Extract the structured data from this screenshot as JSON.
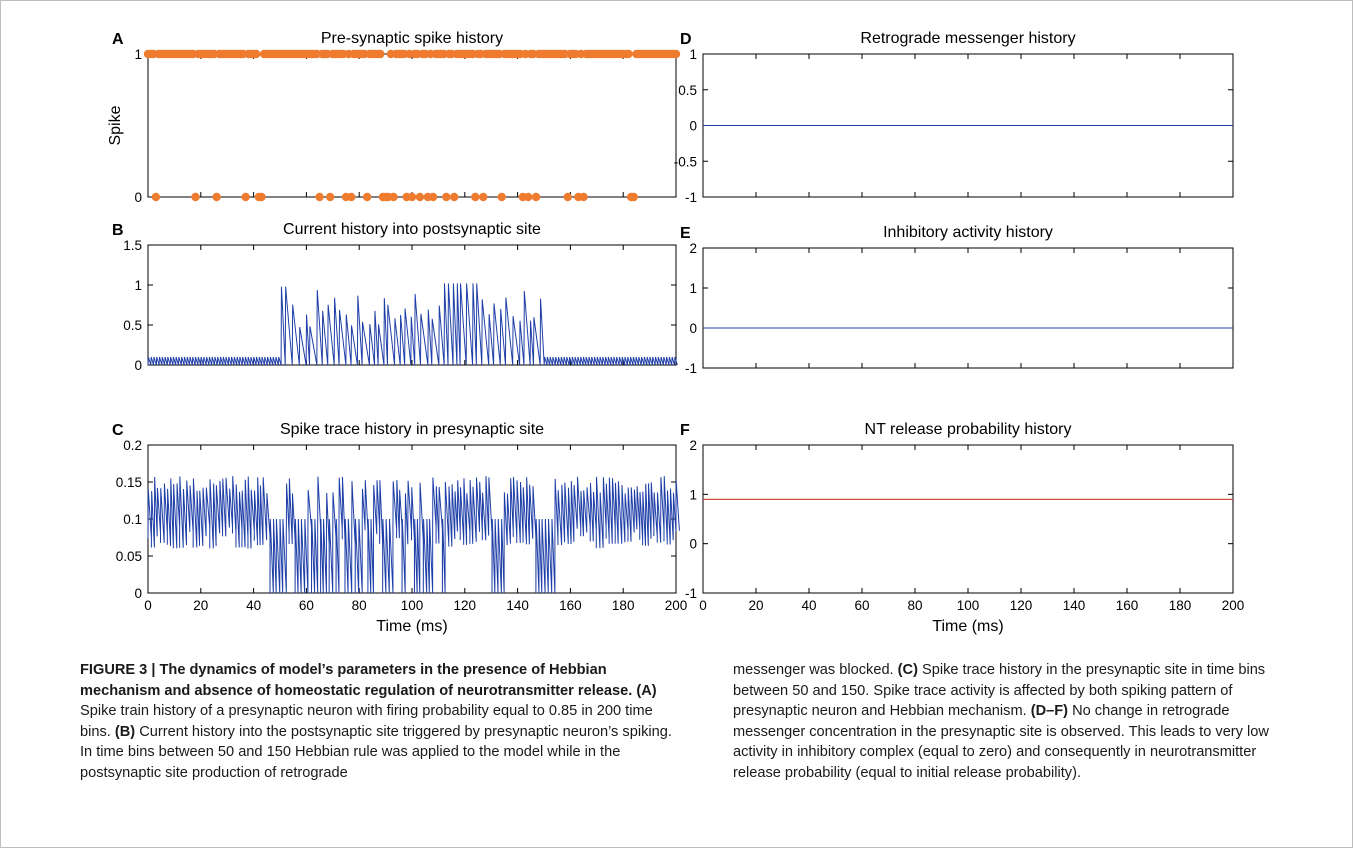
{
  "colors": {
    "spike": "#ef7b2e",
    "trace_blue": "#1f3fa8",
    "nt_red": "#c83a2a",
    "axis": "#000000"
  },
  "chart_data": [
    {
      "id": "A",
      "panel_label": "A",
      "type": "scatter",
      "title": "Pre-synaptic spike history",
      "xlabel": "",
      "ylabel": "Spike",
      "xlim": [
        0,
        200
      ],
      "ylim": [
        0,
        1
      ],
      "yticks": [
        0,
        1
      ],
      "xtick_labels_shown": false,
      "color": "#ef7b2e",
      "zero_spike_times": [
        3,
        18,
        26,
        37,
        42,
        43,
        65,
        69,
        75,
        77,
        83,
        89,
        90,
        91,
        93,
        98,
        100,
        103,
        106,
        108,
        113,
        116,
        124,
        127,
        134,
        142,
        144,
        147,
        159,
        163,
        165,
        183,
        184
      ],
      "spike_value_at_other_bins": 1
    },
    {
      "id": "B",
      "panel_label": "B",
      "type": "line",
      "title": "Current history into postsynaptic site",
      "xlabel": "",
      "ylabel": "",
      "xlim": [
        0,
        200
      ],
      "ylim": [
        0,
        1.5
      ],
      "yticks": [
        0,
        0.5,
        1,
        1.5
      ],
      "xtick_labels_shown": false,
      "color": "#1f3fa8",
      "baseline_peak_outside_50_150": 0.1,
      "hebbian_window": [
        50,
        150
      ],
      "max_peak": 1.02
    },
    {
      "id": "C",
      "panel_label": "C",
      "type": "line",
      "title": "Spike trace history in presynaptic site",
      "xlabel": "Time (ms)",
      "ylabel": "",
      "xlim": [
        0,
        200
      ],
      "ylim": [
        0,
        0.2
      ],
      "yticks": [
        0,
        0.05,
        0.1,
        0.15,
        0.2
      ],
      "xticks": [
        0,
        20,
        40,
        60,
        80,
        100,
        120,
        140,
        160,
        180,
        200
      ],
      "color": "#1f3fa8",
      "peak_max": 0.158,
      "single_spike_peak": 0.1
    },
    {
      "id": "D",
      "panel_label": "D",
      "type": "line",
      "title": "Retrograde messenger history",
      "xlabel": "",
      "ylabel": "",
      "xlim": [
        0,
        200
      ],
      "ylim": [
        -1,
        1
      ],
      "yticks": [
        -1,
        -0.5,
        0,
        0.5,
        1
      ],
      "xtick_labels_shown": false,
      "color": "#1f3fa8",
      "x": [
        0,
        200
      ],
      "y": [
        0,
        0
      ]
    },
    {
      "id": "E",
      "panel_label": "E",
      "type": "line",
      "title": "Inhibitory activity history",
      "xlabel": "",
      "ylabel": "",
      "xlim": [
        0,
        200
      ],
      "ylim": [
        -1,
        2
      ],
      "yticks": [
        -1,
        0,
        1,
        2
      ],
      "xtick_labels_shown": false,
      "color": "#1f3fa8",
      "x": [
        0,
        200
      ],
      "y": [
        0,
        0
      ]
    },
    {
      "id": "F",
      "panel_label": "F",
      "type": "line",
      "title": "NT release probability history",
      "xlabel": "Time (ms)",
      "ylabel": "",
      "xlim": [
        0,
        200
      ],
      "ylim": [
        -1,
        2
      ],
      "yticks": [
        -1,
        0,
        1,
        2
      ],
      "xticks": [
        0,
        20,
        40,
        60,
        80,
        100,
        120,
        140,
        160,
        180,
        200
      ],
      "color": "#c83a2a",
      "x": [
        0,
        200
      ],
      "y": [
        0.9,
        0.9
      ]
    }
  ],
  "caption": {
    "left": {
      "fig_label": "FIGURE 3 | ",
      "bold_title": "The dynamics of model’s parameters in the presence of Hebbian mechanism and absence of homeostatic regulation of neurotransmitter release.",
      "a_label": "(A)",
      "a_text": " Spike train history of a presynaptic neuron with firing probability equal to 0.85 in 200 time bins. ",
      "b_label": "(B)",
      "b_text": " Current history into the postsynaptic site triggered by presynaptic neuron’s spiking. In time bins between 50 and 150 Hebbian rule was applied to the model while in the postsynaptic site production of retrograde"
    },
    "right": {
      "text1": "messenger was blocked. ",
      "c_label": "(C)",
      "c_text": " Spike trace history in the presynaptic site in time bins between 50 and 150. Spike trace activity is affected by both spiking pattern of presynaptic neuron and Hebbian mechanism. ",
      "df_label": "(D–F)",
      "df_text": " No change in retrograde messenger concentration in the presynaptic site is observed. This leads to very low activity in inhibitory complex (equal to zero) and consequently in neurotransmitter release probability (equal to initial release probability)."
    }
  }
}
